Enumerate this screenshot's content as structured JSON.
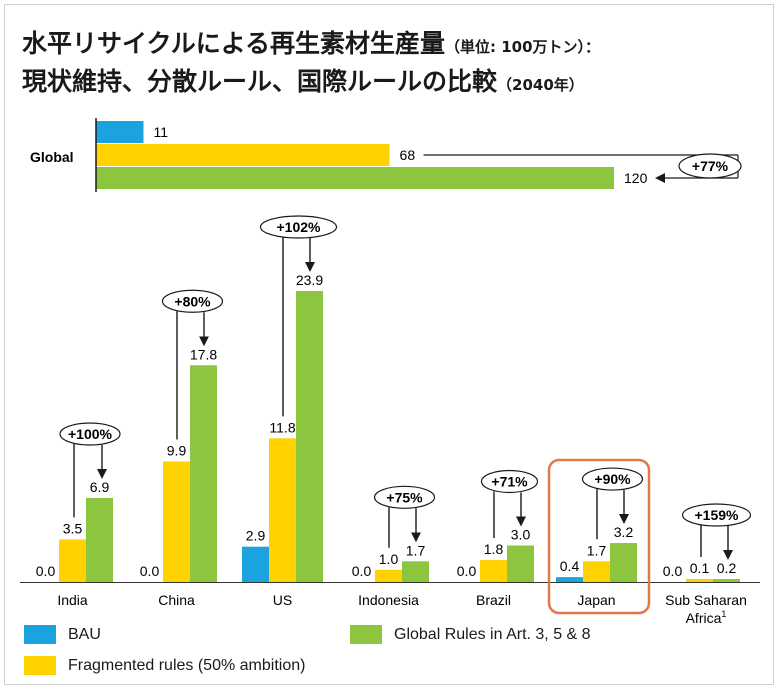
{
  "title": {
    "line1_main": "水平リサイクルによる再生素材生産量",
    "line1_sub": "（単位: 100万トン）：",
    "line2_main": "現状維持、分散ルール、国際ルールの比較",
    "line2_sub": "（2040年）"
  },
  "colors": {
    "bau": "#1aa3df",
    "fragmented": "#ffd200",
    "global": "#8cc63f",
    "highlight": "#e07a45"
  },
  "legend": {
    "bau": "BAU",
    "fragmented": "Fragmented rules (50% ambition)",
    "global": "Global Rules in Art. 3, 5 & 8"
  },
  "chart_data": [
    {
      "type": "bar",
      "orientation": "horizontal",
      "categories": [
        "Global"
      ],
      "series": [
        {
          "name": "BAU",
          "values": [
            11
          ],
          "labels": [
            "11"
          ]
        },
        {
          "name": "Fragmented rules (50% ambition)",
          "values": [
            68
          ],
          "labels": [
            "68"
          ]
        },
        {
          "name": "Global Rules in Art. 3, 5 & 8",
          "values": [
            120
          ],
          "labels": [
            "120"
          ]
        }
      ],
      "annotation": "+77%"
    },
    {
      "type": "bar",
      "categories": [
        "India",
        "China",
        "US",
        "Indonesia",
        "Brazil",
        "Japan",
        "Sub Saharan Africa"
      ],
      "category_superscripts": [
        "",
        "",
        "",
        "",
        "",
        "",
        "1"
      ],
      "series": [
        {
          "name": "BAU",
          "values": [
            0.0,
            0.0,
            2.9,
            0.0,
            0.0,
            0.4,
            0.0
          ],
          "labels": [
            "0.0",
            "0.0",
            "2.9",
            "0.0",
            "0.0",
            "0.4",
            "0.0"
          ]
        },
        {
          "name": "Fragmented rules (50% ambition)",
          "values": [
            3.5,
            9.9,
            11.8,
            1.0,
            1.8,
            1.7,
            0.1
          ],
          "labels": [
            "3.5",
            "9.9",
            "11.8",
            "1.0",
            "1.8",
            "1.7",
            "0.1"
          ]
        },
        {
          "name": "Global Rules in Art. 3, 5 & 8",
          "values": [
            6.9,
            17.8,
            23.9,
            1.7,
            3.0,
            3.2,
            0.2
          ],
          "labels": [
            "6.9",
            "17.8",
            "23.9",
            "1.7",
            "3.0",
            "3.2",
            "0.2"
          ]
        }
      ],
      "annotations": [
        "+100%",
        "+80%",
        "+102%",
        "+75%",
        "+71%",
        "+90%",
        "+159%"
      ],
      "highlighted_category": "Japan"
    }
  ]
}
